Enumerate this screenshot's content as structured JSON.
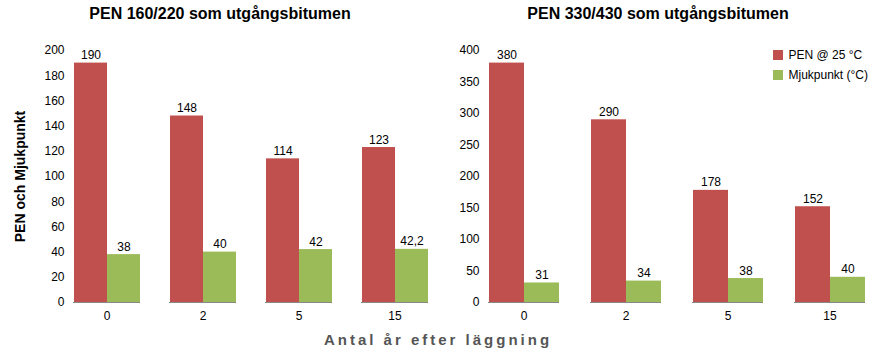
{
  "chart_data": [
    {
      "type": "bar",
      "title": "PEN 160/220 som utgångsbitumen",
      "y_label": "PEN och Mjukpunkt",
      "x_label": "Antal år efter läggning",
      "categories": [
        "0",
        "2",
        "5",
        "15"
      ],
      "series": [
        {
          "name": "PEN @ 25 °C",
          "color": "#c0504d",
          "values": [
            190,
            148,
            114,
            123
          ]
        },
        {
          "name": "Mjukpunkt (°C)",
          "color": "#9bbb59",
          "values": [
            38,
            40,
            42,
            42.2
          ],
          "value_labels": [
            "38",
            "40",
            "42",
            "42,2"
          ]
        }
      ],
      "ylim": [
        0,
        200
      ],
      "yticks": [
        0,
        20,
        40,
        60,
        80,
        100,
        120,
        140,
        160,
        180,
        200
      ],
      "data_labels": true
    },
    {
      "type": "bar",
      "title": "PEN 330/430 som utgångsbitumen",
      "categories": [
        "0",
        "2",
        "5",
        "15"
      ],
      "series": [
        {
          "name": "PEN @ 25 °C",
          "color": "#c0504d",
          "values": [
            380,
            290,
            178,
            152
          ]
        },
        {
          "name": "Mjukpunkt (°C)",
          "color": "#9bbb59",
          "values": [
            31,
            34,
            38,
            40
          ]
        }
      ],
      "ylim": [
        0,
        400
      ],
      "yticks": [
        0,
        50,
        100,
        150,
        200,
        250,
        300,
        350,
        400
      ],
      "data_labels": true,
      "legend": "top-right"
    }
  ]
}
